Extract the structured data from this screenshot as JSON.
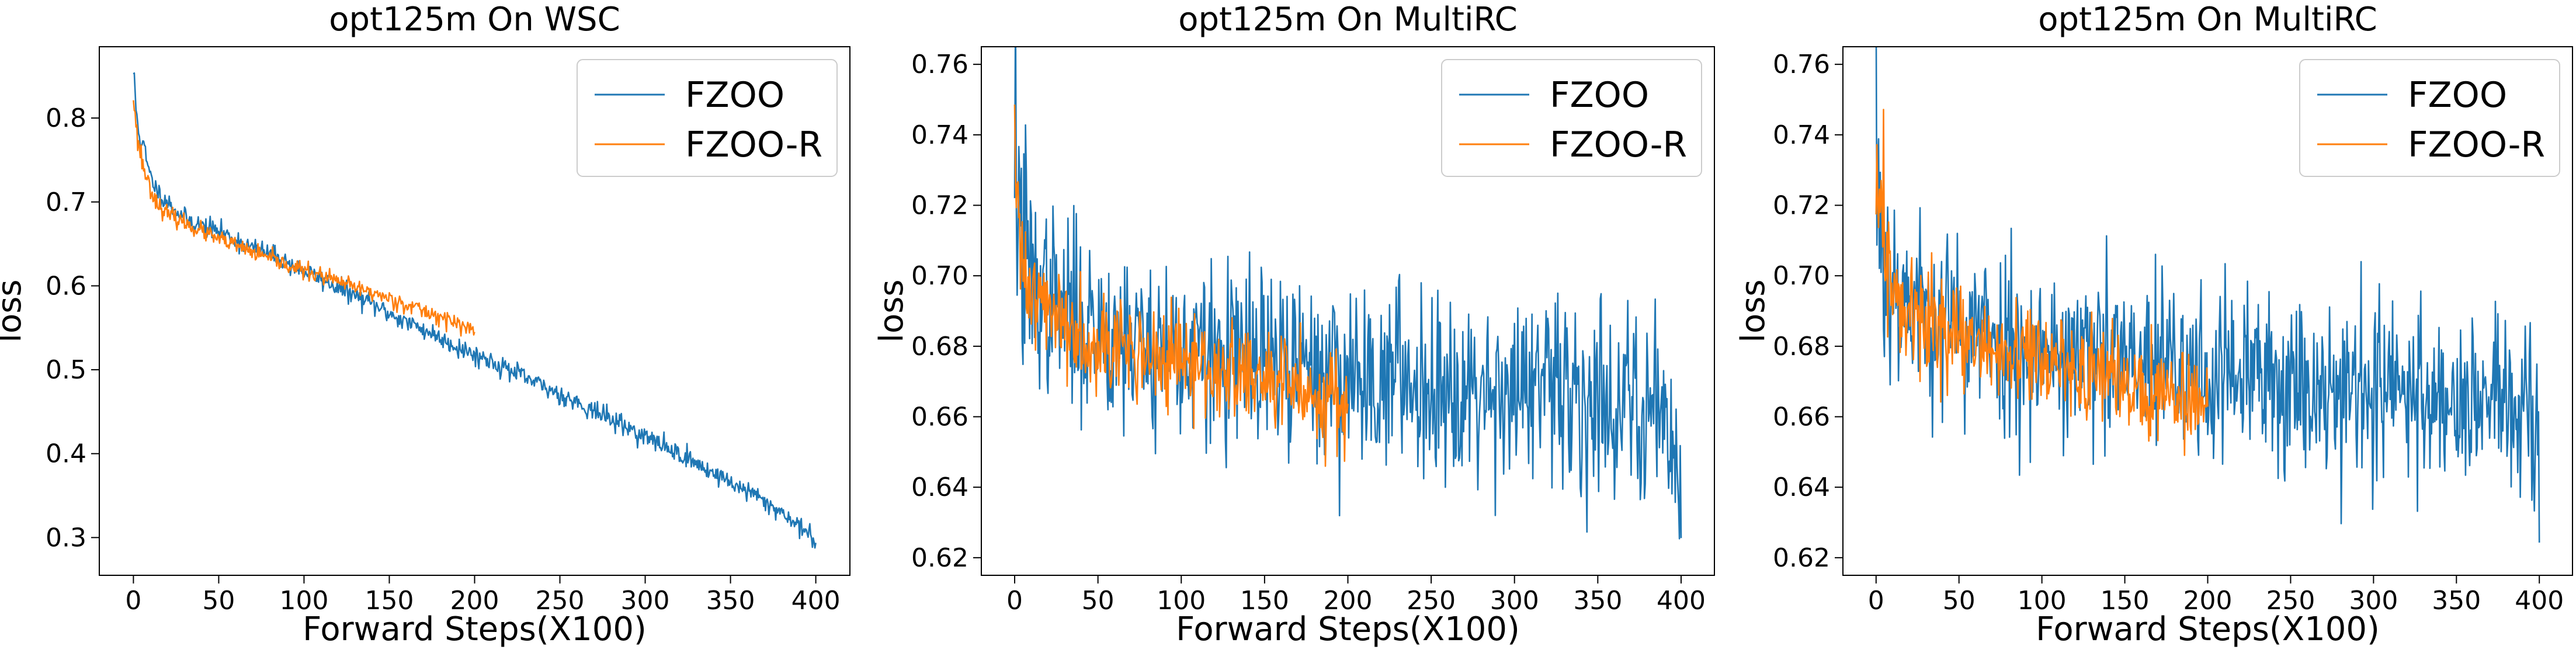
{
  "chart_data": [
    {
      "type": "line",
      "title": "opt125m On WSC",
      "xlabel": "Forward Steps(X100)",
      "ylabel": "loss",
      "xlim": [
        -20,
        420
      ],
      "ylim": [
        0.255,
        0.885
      ],
      "xticks": [
        0,
        50,
        100,
        150,
        200,
        250,
        300,
        350,
        400
      ],
      "yticks": [
        0.3,
        0.4,
        0.5,
        0.6,
        0.7,
        0.8
      ],
      "ytick_labels": [
        "0.3",
        "0.4",
        "0.5",
        "0.6",
        "0.7",
        "0.8"
      ],
      "legend": "top-right",
      "grid": false,
      "series": [
        {
          "name": "FZOO",
          "color": "#1f77b4",
          "points": [
            [
              0,
              0.855
            ],
            [
              2,
              0.8
            ],
            [
              5,
              0.77
            ],
            [
              10,
              0.73
            ],
            [
              15,
              0.71
            ],
            [
              20,
              0.7
            ],
            [
              30,
              0.68
            ],
            [
              40,
              0.672
            ],
            [
              50,
              0.665
            ],
            [
              60,
              0.655
            ],
            [
              70,
              0.645
            ],
            [
              80,
              0.638
            ],
            [
              90,
              0.628
            ],
            [
              100,
              0.617
            ],
            [
              110,
              0.608
            ],
            [
              120,
              0.598
            ],
            [
              130,
              0.588
            ],
            [
              140,
              0.578
            ],
            [
              150,
              0.567
            ],
            [
              160,
              0.557
            ],
            [
              170,
              0.548
            ],
            [
              180,
              0.538
            ],
            [
              190,
              0.527
            ],
            [
              200,
              0.518
            ],
            [
              210,
              0.51
            ],
            [
              220,
              0.5
            ],
            [
              230,
              0.49
            ],
            [
              240,
              0.48
            ],
            [
              250,
              0.471
            ],
            [
              260,
              0.461
            ],
            [
              270,
              0.451
            ],
            [
              280,
              0.441
            ],
            [
              290,
              0.431
            ],
            [
              300,
              0.42
            ],
            [
              310,
              0.41
            ],
            [
              320,
              0.4
            ],
            [
              330,
              0.388
            ],
            [
              340,
              0.377
            ],
            [
              350,
              0.366
            ],
            [
              360,
              0.355
            ],
            [
              370,
              0.343
            ],
            [
              380,
              0.33
            ],
            [
              390,
              0.315
            ],
            [
              400,
              0.293
            ]
          ],
          "noise": 0.006,
          "seed": 11
        },
        {
          "name": "FZOO-R",
          "color": "#ff7f0e",
          "points": [
            [
              0,
              0.83
            ],
            [
              2,
              0.78
            ],
            [
              5,
              0.75
            ],
            [
              10,
              0.715
            ],
            [
              15,
              0.695
            ],
            [
              20,
              0.685
            ],
            [
              30,
              0.675
            ],
            [
              40,
              0.665
            ],
            [
              50,
              0.655
            ],
            [
              60,
              0.648
            ],
            [
              70,
              0.64
            ],
            [
              80,
              0.632
            ],
            [
              90,
              0.625
            ],
            [
              100,
              0.618
            ],
            [
              110,
              0.612
            ],
            [
              120,
              0.605
            ],
            [
              130,
              0.598
            ],
            [
              140,
              0.592
            ],
            [
              150,
              0.585
            ],
            [
              160,
              0.578
            ],
            [
              170,
              0.57
            ],
            [
              180,
              0.563
            ],
            [
              190,
              0.555
            ],
            [
              200,
              0.545
            ]
          ],
          "noise": 0.005,
          "seed": 23
        }
      ]
    },
    {
      "type": "line",
      "title": "opt125m On MultiRC",
      "xlabel": "Forward Steps(X100)",
      "ylabel": "loss",
      "xlim": [
        -20,
        420
      ],
      "ylim": [
        0.615,
        0.765
      ],
      "xticks": [
        0,
        50,
        100,
        150,
        200,
        250,
        300,
        350,
        400
      ],
      "yticks": [
        0.62,
        0.64,
        0.66,
        0.68,
        0.7,
        0.72,
        0.74,
        0.76
      ],
      "ytick_labels": [
        "0.62",
        "0.64",
        "0.66",
        "0.68",
        "0.70",
        "0.72",
        "0.74",
        "0.76"
      ],
      "legend": "top-right",
      "grid": false,
      "series": [
        {
          "name": "FZOO",
          "color": "#1f77b4",
          "points": [
            [
              0,
              0.745
            ],
            [
              2,
              0.72
            ],
            [
              5,
              0.705
            ],
            [
              10,
              0.698
            ],
            [
              20,
              0.693
            ],
            [
              40,
              0.687
            ],
            [
              60,
              0.684
            ],
            [
              80,
              0.681
            ],
            [
              100,
              0.679
            ],
            [
              120,
              0.677
            ],
            [
              150,
              0.675
            ],
            [
              200,
              0.672
            ],
            [
              250,
              0.67
            ],
            [
              300,
              0.668
            ],
            [
              350,
              0.665
            ],
            [
              390,
              0.663
            ],
            [
              400,
              0.64
            ]
          ],
          "noise": 0.013,
          "seed": 37
        },
        {
          "name": "FZOO-R",
          "color": "#ff7f0e",
          "points": [
            [
              0,
              0.73
            ],
            [
              2,
              0.712
            ],
            [
              5,
              0.703
            ],
            [
              10,
              0.697
            ],
            [
              20,
              0.69
            ],
            [
              40,
              0.684
            ],
            [
              60,
              0.68
            ],
            [
              80,
              0.677
            ],
            [
              100,
              0.675
            ],
            [
              120,
              0.673
            ],
            [
              150,
              0.67
            ],
            [
              180,
              0.667
            ],
            [
              200,
              0.664
            ]
          ],
          "noise": 0.007,
          "seed": 41
        }
      ]
    },
    {
      "type": "line",
      "title": "opt125m On MultiRC",
      "xlabel": "Forward Steps(X100)",
      "ylabel": "loss",
      "xlim": [
        -20,
        420
      ],
      "ylim": [
        0.615,
        0.765
      ],
      "xticks": [
        0,
        50,
        100,
        150,
        200,
        250,
        300,
        350,
        400
      ],
      "yticks": [
        0.62,
        0.64,
        0.66,
        0.68,
        0.7,
        0.72,
        0.74,
        0.76
      ],
      "ytick_labels": [
        "0.62",
        "0.64",
        "0.66",
        "0.68",
        "0.70",
        "0.72",
        "0.74",
        "0.76"
      ],
      "legend": "top-right",
      "grid": false,
      "series": [
        {
          "name": "FZOO",
          "color": "#1f77b4",
          "points": [
            [
              0,
              0.745
            ],
            [
              2,
              0.72
            ],
            [
              5,
              0.705
            ],
            [
              10,
              0.698
            ],
            [
              20,
              0.693
            ],
            [
              40,
              0.687
            ],
            [
              60,
              0.684
            ],
            [
              80,
              0.681
            ],
            [
              100,
              0.679
            ],
            [
              120,
              0.677
            ],
            [
              150,
              0.675
            ],
            [
              200,
              0.672
            ],
            [
              250,
              0.67
            ],
            [
              300,
              0.668
            ],
            [
              350,
              0.665
            ],
            [
              390,
              0.663
            ],
            [
              400,
              0.64
            ]
          ],
          "noise": 0.013,
          "seed": 53
        },
        {
          "name": "FZOO-R",
          "color": "#ff7f0e",
          "points": [
            [
              0,
              0.73
            ],
            [
              2,
              0.712
            ],
            [
              5,
              0.703
            ],
            [
              10,
              0.697
            ],
            [
              20,
              0.69
            ],
            [
              40,
              0.684
            ],
            [
              60,
              0.68
            ],
            [
              80,
              0.677
            ],
            [
              100,
              0.675
            ],
            [
              120,
              0.673
            ],
            [
              150,
              0.67
            ],
            [
              180,
              0.667
            ],
            [
              200,
              0.664
            ]
          ],
          "noise": 0.007,
          "seed": 59
        }
      ]
    }
  ]
}
